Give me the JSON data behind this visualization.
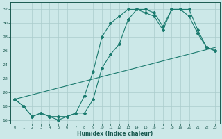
{
  "xlabel": "Humidex (Indice chaleur)",
  "bg_color": "#cce8e8",
  "grid_color": "#aacccc",
  "line_color": "#1a7a6e",
  "xlim": [
    -0.5,
    23.5
  ],
  "ylim": [
    15.5,
    33
  ],
  "xticks": [
    0,
    1,
    2,
    3,
    4,
    5,
    6,
    7,
    8,
    9,
    10,
    11,
    12,
    13,
    14,
    15,
    16,
    17,
    18,
    19,
    20,
    21,
    22,
    23
  ],
  "yticks": [
    16,
    18,
    20,
    22,
    24,
    26,
    28,
    30,
    32
  ],
  "line1_x": [
    0,
    1,
    2,
    3,
    4,
    5,
    6,
    7,
    8,
    9,
    10,
    11,
    12,
    13,
    14,
    15,
    16,
    17,
    18,
    19,
    20,
    21,
    22,
    23
  ],
  "line1_y": [
    19,
    18,
    16.5,
    17,
    16.5,
    16,
    16.5,
    17,
    19.5,
    23,
    28,
    30,
    31,
    32,
    32,
    31.5,
    31,
    29,
    32,
    32,
    32,
    29,
    26.5,
    26
  ],
  "line2_x": [
    0,
    1,
    2,
    3,
    4,
    5,
    6,
    7,
    8,
    9,
    10,
    11,
    12,
    13,
    14,
    15,
    16,
    17,
    18,
    19,
    20,
    21,
    22,
    23
  ],
  "line2_y": [
    19,
    18,
    16.5,
    17,
    16.5,
    16.5,
    16.5,
    17,
    17,
    19,
    23.5,
    25.5,
    27,
    30.5,
    32,
    32,
    31.5,
    29.5,
    32,
    32,
    31,
    28.5,
    26.5,
    26
  ],
  "line3_x": [
    0,
    23
  ],
  "line3_y": [
    19,
    26.5
  ]
}
